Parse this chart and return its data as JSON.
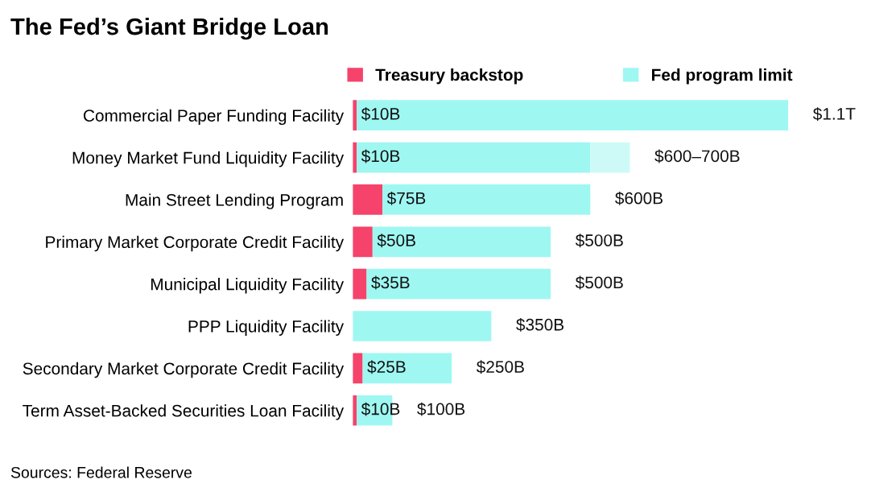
{
  "chart_data": {
    "type": "bar",
    "orientation": "horizontal",
    "stacked": true,
    "title": "The Fed’s Giant Bridge Loan",
    "categories": [
      "Commercial Paper Funding Facility",
      "Money Market Fund Liquidity Facility",
      "Main Street Lending Program",
      "Primary Market Corporate Credit Facility",
      "Municipal Liquidity Facility",
      "PPP Liquidity Facility",
      "Secondary Market Corporate Credit Facility",
      "Term Asset-Backed Securities Loan Facility"
    ],
    "series": [
      {
        "name": "Treasury backstop",
        "color": "#f5436b",
        "values": [
          10,
          10,
          75,
          50,
          35,
          null,
          25,
          10
        ],
        "value_labels": [
          "$10B",
          "$10B",
          "$75B",
          "$50B",
          "$35B",
          null,
          "$25B",
          "$10B"
        ]
      },
      {
        "name": "Fed program limit",
        "color": "#9ff7f2",
        "values": [
          1090,
          590,
          525,
          450,
          465,
          350,
          225,
          90
        ]
      },
      {
        "color": "#cdfaf7",
        "values": [
          null,
          100,
          null,
          null,
          null,
          null,
          null,
          null
        ]
      }
    ],
    "totals": [
      "$1.1T",
      "$600–700B",
      "$600B",
      "$500B",
      "$500B",
      "$350B",
      "$250B",
      "$100B"
    ],
    "legend": "top",
    "grid": false,
    "tick_labels": "y",
    "annotations": [
      "Sources: Federal Reserve"
    ]
  }
}
